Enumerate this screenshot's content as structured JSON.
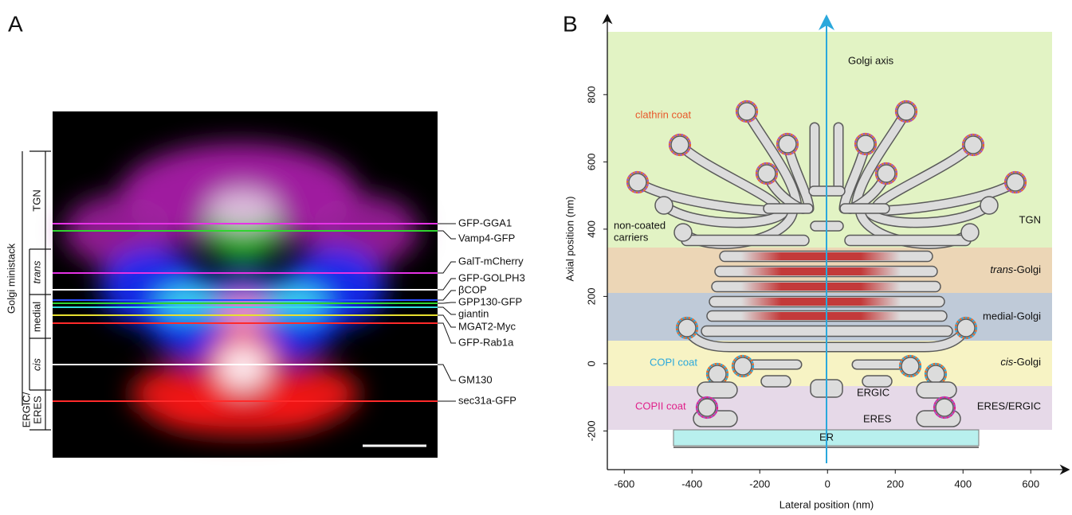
{
  "panel_a": {
    "letter": "A",
    "stack_label": "Golgi ministack",
    "stages": [
      {
        "label": "TGN"
      },
      {
        "label": "trans"
      },
      {
        "label": "medial"
      },
      {
        "label": "cis"
      },
      {
        "lines": [
          "ERGIC/",
          "ERES"
        ]
      }
    ],
    "markers": [
      {
        "label": "GFP-GGA1",
        "color": "#e632e6"
      },
      {
        "label": "Vamp4-GFP",
        "color": "#2fd42f"
      },
      {
        "label": "GalT-mCherry",
        "color": "#e632e6"
      },
      {
        "label": "GFP-GOLPH3",
        "color": "#ffffff"
      },
      {
        "label": "βCOP",
        "color": "#2a4cff"
      },
      {
        "label": "GPP130-GFP",
        "color": "#2fd42f"
      },
      {
        "label": "giantin",
        "color": "#33e0e0"
      },
      {
        "label": "MGAT2-Myc",
        "color": "#e8e030"
      },
      {
        "label": "GFP-Rab1a",
        "color": "#ff2a2a"
      },
      {
        "label": "GM130",
        "color": "#ffffff"
      },
      {
        "label": "sec31a-GFP",
        "color": "#ff2a2a"
      }
    ]
  },
  "panel_b": {
    "letter": "B",
    "x_label": "Lateral position (nm)",
    "y_label": "Axial position (nm)",
    "xlim": [
      -650,
      710
    ],
    "ylim": [
      -315,
      1034
    ],
    "xticks": [
      -600,
      -400,
      -200,
      0,
      200,
      400,
      600
    ],
    "yticks": [
      -200,
      0,
      200,
      400,
      600,
      800
    ],
    "axis_label": "Golgi axis",
    "regions": [
      {
        "label": "TGN",
        "color": "#e2f3c4"
      },
      {
        "italic": "trans",
        "rest": "-Golgi",
        "color": "#ecd6b6"
      },
      {
        "label": "medial-Golgi",
        "color": "#bfcad8"
      },
      {
        "italic": "cis",
        "rest": "-Golgi",
        "color": "#f7f3c4"
      },
      {
        "label": "ERES/ERGIC",
        "color": "#e6d9e8"
      }
    ],
    "annotations": {
      "clathrin": "clathrin coat",
      "non_coated": [
        "non-coated",
        "carriers"
      ],
      "copi": "COPI coat",
      "copii": "COPII coat",
      "ergic": "ERGIC",
      "eres": "ERES",
      "er": "ER"
    }
  }
}
